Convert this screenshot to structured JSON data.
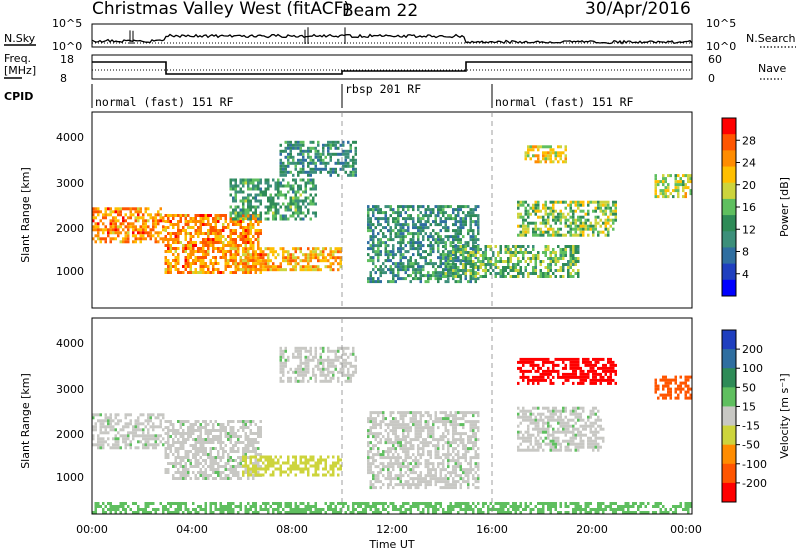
{
  "header": {
    "title": "Christmas Valley West (fitACF)",
    "beam": "Beam 22",
    "date": "30/Apr/2016"
  },
  "aux": {
    "nsky_label": "N.Sky",
    "nsky_ticks": [
      "10^5",
      "10^0"
    ],
    "nsearch_label": "N.Search",
    "nsearch_ticks": [
      "10^5",
      "10^0"
    ],
    "freq_label": "Freq.",
    "freq_unit": "[MHz]",
    "freq_ticks": [
      "18",
      "8"
    ],
    "nave_label": "Nave",
    "nave_ticks": [
      "60",
      "0"
    ],
    "cpid_label": "CPID",
    "cpid_segments": [
      {
        "label": "normal (fast) 151 RF",
        "start": 0
      },
      {
        "label": "rbsp 201 RF",
        "start": 10
      },
      {
        "label": "normal (fast) 151 RF",
        "start": 16
      }
    ]
  },
  "colorbars": {
    "power": {
      "label": "Power [dB]",
      "ticks": [
        "28",
        "24",
        "20",
        "16",
        "12",
        "8",
        "4"
      ],
      "colors": [
        "#ff0000",
        "#ff5500",
        "#ff8c00",
        "#ffbf00",
        "#cdd43c",
        "#5fbf5f",
        "#2e8b57",
        "#3c8f7a",
        "#2f6ea0",
        "#1f3fbf",
        "#0000ff"
      ]
    },
    "velocity": {
      "label": "Velocity [m s⁻¹]",
      "ticks": [
        "200",
        "100",
        "50",
        "15",
        "-15",
        "-50",
        "-100",
        "-200"
      ],
      "colors": [
        "#1f3fbf",
        "#2f6ea0",
        "#2e8b57",
        "#5fbf5f",
        "#c8c8c4",
        "#cdd43c",
        "#ff8c00",
        "#ff5500",
        "#ff0000"
      ]
    }
  },
  "axes": {
    "ylabel": "Slant Range [km]",
    "xlabel": "Time UT",
    "yticks": [
      "1000",
      "2000",
      "3000",
      "4000"
    ],
    "xticks": [
      "00:00",
      "04:00",
      "08:00",
      "12:00",
      "16:00",
      "20:00",
      "00:00"
    ]
  },
  "chart_data": [
    {
      "type": "heatmap",
      "name": "Power",
      "xlabel": "Time UT",
      "ylabel": "Slant Range [km]",
      "xlim": [
        0,
        24
      ],
      "ylim": [
        180,
        4600
      ],
      "colorbar": "Power [dB]",
      "zlim": [
        0,
        30
      ],
      "regions": [
        {
          "t0": 0.0,
          "t1": 2.9,
          "r0": 1700,
          "r1": 2450,
          "z": 24
        },
        {
          "t0": 2.9,
          "t1": 6.8,
          "r0": 1000,
          "r1": 2300,
          "z": 24
        },
        {
          "t0": 5.6,
          "t1": 10.0,
          "r0": 1050,
          "r1": 1550,
          "z": 22
        },
        {
          "t0": 5.5,
          "t1": 9.0,
          "r0": 2200,
          "r1": 3100,
          "z": 12
        },
        {
          "t0": 7.5,
          "t1": 10.6,
          "r0": 3200,
          "r1": 3950,
          "z": 10
        },
        {
          "t0": 11.0,
          "t1": 15.5,
          "r0": 800,
          "r1": 2500,
          "z": 10
        },
        {
          "t0": 14.0,
          "t1": 19.5,
          "r0": 900,
          "r1": 1600,
          "z": 14
        },
        {
          "t0": 17.0,
          "t1": 21.0,
          "r0": 1800,
          "r1": 2600,
          "z": 16
        },
        {
          "t0": 17.3,
          "t1": 19.0,
          "r0": 3500,
          "r1": 3850,
          "z": 20
        },
        {
          "t0": 22.5,
          "t1": 24.0,
          "r0": 2700,
          "r1": 3200,
          "z": 18
        }
      ]
    },
    {
      "type": "heatmap",
      "name": "Velocity",
      "xlabel": "Time UT",
      "ylabel": "Slant Range [km]",
      "xlim": [
        0,
        24
      ],
      "ylim": [
        180,
        4600
      ],
      "colorbar": "Velocity [m s⁻¹]",
      "zlim": [
        -200,
        200
      ],
      "regions": [
        {
          "t0": 0.0,
          "t1": 2.9,
          "r0": 1700,
          "r1": 2450,
          "z": 0
        },
        {
          "t0": 2.9,
          "t1": 6.8,
          "r0": 1000,
          "r1": 2300,
          "z": 0
        },
        {
          "t0": 6.0,
          "t1": 10.0,
          "r0": 1050,
          "r1": 1500,
          "z": -40
        },
        {
          "t0": 7.5,
          "t1": 10.6,
          "r0": 3200,
          "r1": 3950,
          "z": 0
        },
        {
          "t0": 11.0,
          "t1": 15.5,
          "r0": 800,
          "r1": 2500,
          "z": 0
        },
        {
          "t0": 17.0,
          "t1": 20.5,
          "r0": 1600,
          "r1": 2600,
          "z": 0
        },
        {
          "t0": 17.0,
          "t1": 21.0,
          "r0": 3150,
          "r1": 3700,
          "z": -200
        },
        {
          "t0": 22.5,
          "t1": 24.0,
          "r0": 2800,
          "r1": 3300,
          "z": -80
        },
        {
          "t0": 0.0,
          "t1": 24.0,
          "r0": 180,
          "r1": 450,
          "z": 30
        }
      ]
    }
  ]
}
